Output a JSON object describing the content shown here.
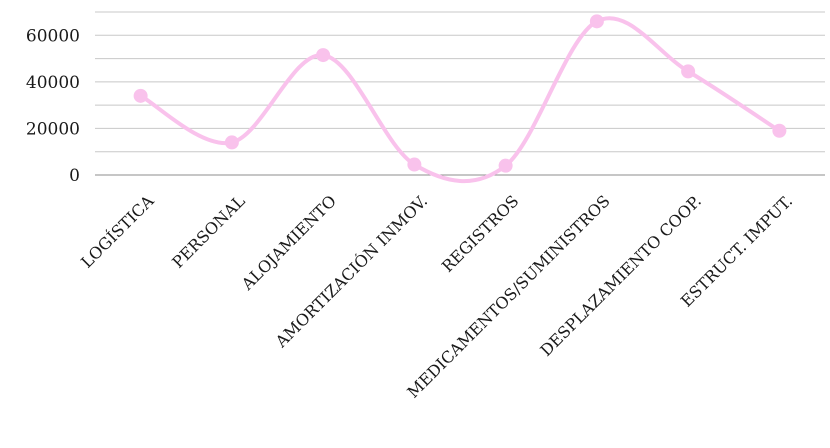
{
  "chart_data": {
    "type": "line",
    "smooth": true,
    "categories": [
      "LOGÍSTICA",
      "PERSONAL",
      "ALOJAMIENTO",
      "AMORTIZACIÓN INMOV.",
      "REGISTROS",
      "MEDICAMENTOS/SUMINISTROS",
      "DESPLAZAMIENTO COOP.",
      "ESTRUCT. IMPUT."
    ],
    "series": [
      {
        "values": [
          34000,
          14000,
          51500,
          4500,
          4000,
          66000,
          44500,
          19000
        ],
        "color": "#f9c2ec"
      }
    ],
    "yticks": [
      0,
      20000,
      40000,
      60000
    ],
    "ylim": [
      0,
      70000
    ],
    "grid": true,
    "legend": "none",
    "title": "",
    "xlabel": "",
    "ylabel": ""
  }
}
